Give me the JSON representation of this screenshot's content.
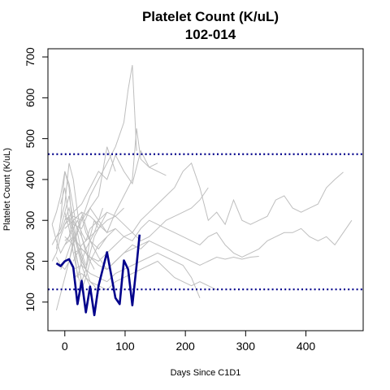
{
  "chart_data": {
    "type": "line",
    "title": "Platelet Count (K/uL)",
    "subtitle": "102-014",
    "xlabel": "Days Since C1D1",
    "ylabel": "Platelet Count (K/uL)",
    "xlim": [
      -28,
      495
    ],
    "ylim": [
      30,
      720
    ],
    "x_ticks": [
      0,
      100,
      200,
      300,
      400
    ],
    "y_ticks": [
      100,
      200,
      300,
      400,
      500,
      600,
      700
    ],
    "reference_lines": [
      {
        "y": 462,
        "style": "dotted",
        "color": "#00008b"
      },
      {
        "y": 131,
        "style": "dotted",
        "color": "#00008b"
      }
    ],
    "colors": {
      "background_series": "#bebebe",
      "highlight": "#00008b",
      "reference": "#00008b"
    },
    "highlight_series": {
      "x": [
        -14,
        -7,
        0,
        7,
        14,
        21,
        28,
        35,
        42,
        49,
        56,
        70,
        84,
        91,
        98,
        105,
        112,
        119,
        124
      ],
      "y": [
        195,
        188,
        200,
        205,
        185,
        95,
        152,
        75,
        138,
        68,
        140,
        222,
        110,
        95,
        202,
        180,
        92,
        190,
        265
      ]
    },
    "background_series": [
      {
        "x": [
          -21,
          -14,
          -7,
          0,
          7,
          14,
          21,
          28,
          35,
          42,
          56,
          70,
          84
        ],
        "y": [
          290,
          250,
          220,
          240,
          260,
          300,
          280,
          310,
          270,
          250,
          230,
          260,
          280
        ]
      },
      {
        "x": [
          -14,
          -7,
          0,
          7,
          14,
          21,
          28,
          35,
          42,
          49,
          56
        ],
        "y": [
          230,
          300,
          420,
          380,
          260,
          160,
          200,
          180,
          260,
          300,
          280
        ]
      },
      {
        "x": [
          -7,
          0,
          7,
          14,
          21,
          28,
          35,
          42,
          49,
          56,
          63,
          70
        ],
        "y": [
          340,
          380,
          300,
          250,
          200,
          150,
          180,
          220,
          260,
          280,
          300,
          320
        ]
      },
      {
        "x": [
          -21,
          -14,
          -7,
          0,
          7,
          14,
          21,
          28,
          35,
          42
        ],
        "y": [
          200,
          220,
          260,
          290,
          310,
          270,
          230,
          190,
          160,
          140
        ]
      },
      {
        "x": [
          -14,
          -7,
          0,
          7,
          14,
          21,
          28,
          35,
          42,
          49,
          56,
          63
        ],
        "y": [
          260,
          280,
          320,
          360,
          300,
          240,
          200,
          230,
          250,
          270,
          300,
          330
        ]
      },
      {
        "x": [
          -7,
          0,
          7,
          14,
          21,
          28,
          35,
          42,
          49
        ],
        "y": [
          300,
          340,
          440,
          400,
          320,
          260,
          220,
          200,
          180
        ]
      },
      {
        "x": [
          0,
          7,
          14,
          21,
          28,
          35,
          42,
          56,
          70,
          84,
          98
        ],
        "y": [
          250,
          260,
          280,
          300,
          270,
          250,
          280,
          300,
          320,
          310,
          330
        ]
      },
      {
        "x": [
          -21,
          -14,
          -7,
          0,
          7,
          14,
          21,
          28
        ],
        "y": [
          240,
          260,
          270,
          300,
          330,
          280,
          240,
          210
        ]
      },
      {
        "x": [
          0,
          7,
          14,
          21,
          28,
          35,
          42,
          56,
          70
        ],
        "y": [
          320,
          280,
          220,
          170,
          130,
          160,
          200,
          240,
          260
        ]
      },
      {
        "x": [
          -7,
          0,
          7,
          14,
          21,
          28,
          35,
          42,
          49,
          56
        ],
        "y": [
          180,
          200,
          230,
          260,
          240,
          210,
          180,
          150,
          140,
          120
        ]
      },
      {
        "x": [
          0,
          14,
          28,
          42,
          56,
          70,
          84,
          98,
          112,
          126,
          140
        ],
        "y": [
          280,
          300,
          320,
          250,
          210,
          180,
          200,
          220,
          240,
          230,
          250
        ]
      },
      {
        "x": [
          0,
          14,
          28,
          42,
          56,
          70,
          84,
          98,
          105,
          112,
          119
        ],
        "y": [
          290,
          310,
          300,
          360,
          400,
          440,
          480,
          540,
          620,
          680,
          470
        ]
      },
      {
        "x": [
          0,
          14,
          28,
          42,
          56,
          70,
          84,
          98,
          112,
          126,
          140,
          154
        ],
        "y": [
          300,
          320,
          340,
          380,
          420,
          400,
          460,
          420,
          390,
          470,
          430,
          440
        ]
      },
      {
        "x": [
          0,
          14,
          28,
          42,
          56,
          70,
          84,
          98,
          112,
          119,
          126,
          140,
          154,
          168
        ],
        "y": [
          310,
          290,
          280,
          330,
          300,
          270,
          320,
          360,
          400,
          525,
          450,
          430,
          420,
          410
        ]
      },
      {
        "x": [
          0,
          14,
          28,
          42,
          56,
          70,
          84
        ],
        "y": [
          260,
          240,
          300,
          330,
          360,
          480,
          420
        ]
      },
      {
        "x": [
          0,
          14,
          28,
          42,
          56,
          70,
          84,
          98,
          112,
          126,
          140,
          154,
          168,
          182,
          196,
          210,
          224,
          238,
          252,
          266,
          280,
          294,
          308,
          322,
          336,
          350,
          364,
          378,
          392,
          406,
          420,
          434,
          448,
          462
        ],
        "y": [
          280,
          300,
          320,
          310,
          290,
          270,
          280,
          260,
          270,
          300,
          320,
          340,
          360,
          380,
          420,
          440,
          380,
          300,
          320,
          290,
          350,
          300,
          290,
          300,
          310,
          350,
          360,
          330,
          320,
          330,
          340,
          380,
          400,
          418
        ]
      },
      {
        "x": [
          0,
          14,
          28,
          42,
          56,
          70,
          84,
          98,
          112,
          126,
          140,
          154,
          168,
          182,
          196,
          210,
          224,
          238,
          252,
          266,
          280,
          294,
          308,
          322,
          336,
          350,
          364,
          378,
          392,
          406,
          420,
          434,
          448,
          462,
          476
        ],
        "y": [
          240,
          260,
          230,
          210,
          200,
          220,
          240,
          260,
          250,
          280,
          300,
          290,
          280,
          270,
          260,
          250,
          240,
          260,
          270,
          240,
          220,
          210,
          220,
          230,
          250,
          260,
          270,
          270,
          280,
          260,
          250,
          260,
          240,
          270,
          300
        ]
      },
      {
        "x": [
          14,
          28,
          42,
          56,
          70,
          84,
          98,
          112,
          126,
          140,
          154,
          168,
          182,
          196,
          210,
          224,
          238
        ],
        "y": [
          200,
          240,
          260,
          280,
          300,
          310,
          290,
          270,
          250,
          260,
          280,
          300,
          310,
          320,
          330,
          350,
          380
        ]
      },
      {
        "x": [
          14,
          28,
          42,
          56,
          70,
          84,
          98,
          112,
          126,
          140,
          154,
          168,
          182,
          196,
          210,
          224,
          238,
          252,
          266,
          280,
          294,
          308,
          322
        ],
        "y": [
          220,
          230,
          210,
          190,
          180,
          200,
          220,
          230,
          240,
          250,
          240,
          230,
          220,
          210,
          200,
          190,
          200,
          210,
          205,
          210,
          205,
          210,
          212
        ]
      },
      {
        "x": [
          14,
          28,
          42,
          56,
          70,
          84,
          98,
          112,
          126,
          140,
          154,
          168,
          182,
          196,
          210,
          224
        ],
        "y": [
          180,
          190,
          170,
          160,
          150,
          170,
          180,
          190,
          200,
          210,
          220,
          210,
          200,
          190,
          160,
          110
        ]
      },
      {
        "x": [
          14,
          28,
          42,
          56,
          70,
          84,
          98,
          112,
          126,
          140,
          154,
          168,
          182,
          196,
          210,
          224,
          238,
          252
        ],
        "y": [
          160,
          170,
          150,
          140,
          130,
          150,
          160,
          170,
          180,
          190,
          200,
          180,
          160,
          150,
          140,
          150,
          140,
          130
        ]
      },
      {
        "x": [
          -14,
          -7,
          0,
          7,
          14,
          21,
          28
        ],
        "y": [
          80,
          120,
          160,
          200,
          250,
          200,
          150
        ]
      },
      {
        "x": [
          -21,
          -14,
          -7,
          0,
          7,
          14,
          21,
          28,
          35
        ],
        "y": [
          290,
          320,
          360,
          420,
          390,
          330,
          270,
          220,
          190
        ]
      },
      {
        "x": [
          -14,
          -7,
          0,
          7,
          14,
          21,
          28,
          35,
          42
        ],
        "y": [
          210,
          190,
          180,
          200,
          240,
          280,
          260,
          230,
          200
        ]
      }
    ]
  }
}
